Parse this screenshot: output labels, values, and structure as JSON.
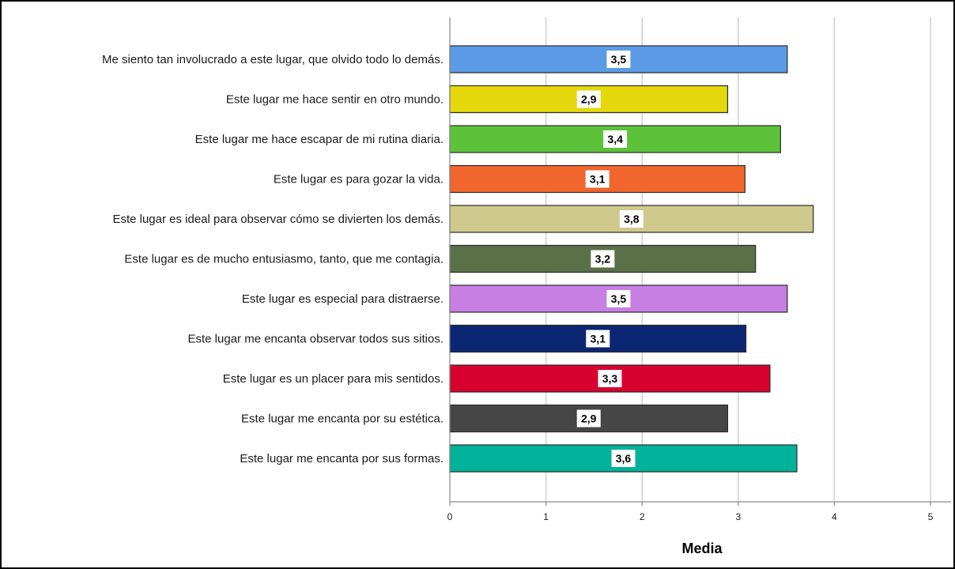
{
  "chart_data": {
    "type": "bar",
    "orientation": "horizontal",
    "title": "",
    "xlabel": "Media",
    "ylabel": "",
    "xlim": [
      0,
      5
    ],
    "xticks": [
      "0",
      "1",
      "2",
      "3",
      "4",
      "5"
    ],
    "grid": "vertical",
    "legend": "none",
    "categories": [
      "Me siento tan involucrado a este lugar, que olvido todo lo demás.",
      "Este lugar me hace sentir en otro mundo.",
      "Este lugar me hace escapar de mi rutina diaria.",
      "Este lugar es para gozar la vida.",
      "Este lugar es ideal para observar cómo se divierten los demás.",
      "Este lugar es de mucho entusiasmo, tanto, que me contagia.",
      "Este lugar es especial para distraerse.",
      "Este lugar me encanta observar todos sus sitios.",
      "Este lugar es un placer para mis sentidos.",
      "Este lugar me encanta por su estética.",
      "Este lugar me encanta por sus formas."
    ],
    "values": [
      3.51,
      2.89,
      3.44,
      3.07,
      3.78,
      3.18,
      3.51,
      3.08,
      3.33,
      2.89,
      3.61
    ],
    "data_labels": [
      "3,5",
      "2,9",
      "3,4",
      "3,1",
      "3,8",
      "3,2",
      "3,5",
      "3,1",
      "3,3",
      "2,9",
      "3,6"
    ],
    "colors": [
      "#5b9be6",
      "#e4d80c",
      "#5cc23a",
      "#f0662c",
      "#cfc98e",
      "#5a7049",
      "#c77fe3",
      "#0b2672",
      "#d8002f",
      "#464646",
      "#00b29a"
    ]
  }
}
